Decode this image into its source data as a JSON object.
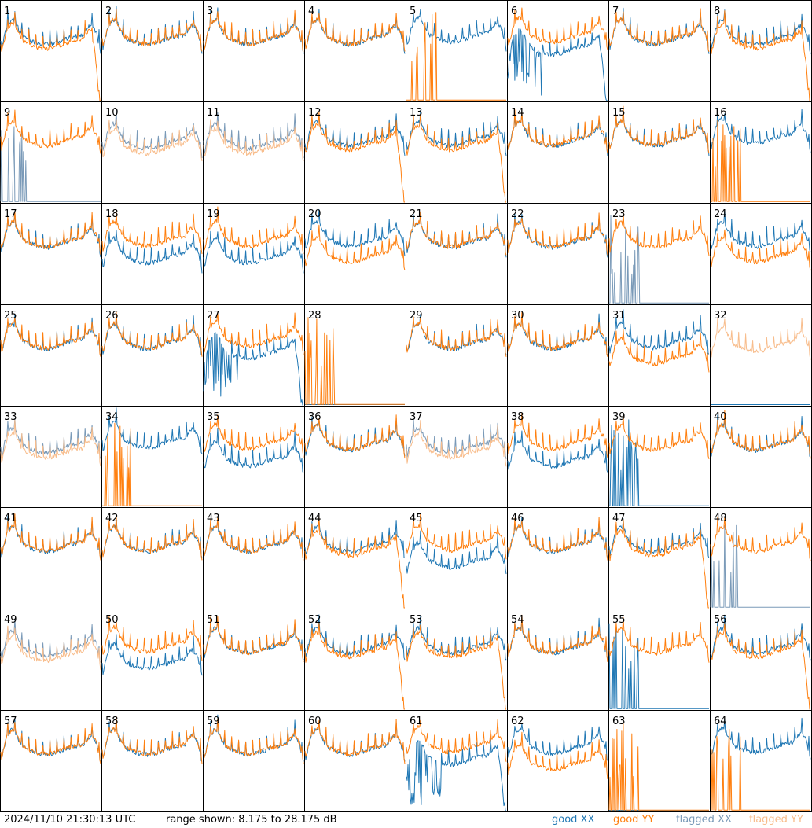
{
  "footer": {
    "timestamp": "2024/11/10 21:30:13 UTC",
    "range_text": "range shown: 8.175 to 28.175 dB"
  },
  "legend": {
    "good_xx": "good XX",
    "good_yy": "good YY",
    "flagged_xx": "flagged XX",
    "flagged_yy": "flagged YY"
  },
  "colors": {
    "good_xx": "#1f77b4",
    "good_yy": "#ff7f0e",
    "flagged_xx": "#7a9ab8",
    "flagged_yy": "#f8bd8c",
    "frame": "#000000"
  },
  "chart_data": {
    "type": "line",
    "grid": "8x8",
    "ylim": [
      8.175,
      28.175
    ],
    "y_unit": "dB",
    "panel_labels": [
      "1",
      "2",
      "3",
      "4",
      "5",
      "6",
      "7",
      "8",
      "9",
      "10",
      "11",
      "12",
      "13",
      "14",
      "15",
      "16",
      "17",
      "18",
      "19",
      "20",
      "21",
      "22",
      "23",
      "24",
      "25",
      "26",
      "27",
      "28",
      "29",
      "30",
      "31",
      "32",
      "33",
      "34",
      "35",
      "36",
      "37",
      "38",
      "39",
      "40",
      "41",
      "42",
      "43",
      "44",
      "45",
      "46",
      "47",
      "48",
      "49",
      "50",
      "51",
      "52",
      "53",
      "54",
      "55",
      "56",
      "57",
      "58",
      "59",
      "60",
      "61",
      "62",
      "63",
      "64"
    ],
    "panel_types": [
      "AA",
      "N",
      "N",
      "N",
      "XY",
      "AB",
      "N",
      "AA",
      "FXN",
      "FN",
      "FN",
      "AA",
      "AA",
      "N",
      "N",
      "XY",
      "N",
      "DX",
      "DX",
      "DY",
      "N",
      "N",
      "FXN",
      "DY",
      "N",
      "N",
      "AB",
      "BY",
      "N",
      "N",
      "DY",
      "FY",
      "FN",
      "XY",
      "DX",
      "N",
      "FN",
      "DX",
      "BX",
      "N",
      "N",
      "N",
      "N",
      "AA",
      "DX",
      "N",
      "AA",
      "FXN",
      "FN",
      "DX",
      "N",
      "AA",
      "AA",
      "N",
      "BX",
      "AA",
      "N",
      "N",
      "N",
      "N",
      "AB",
      "DY",
      "BY",
      "XY"
    ],
    "panel_type_key": {
      "N": "XX and YY overlap",
      "DX": "XX lower than YY",
      "DY": "YY lower than XX",
      "AA": "YY rolls off at high end",
      "AB": "XX rolls off at high end",
      "XY": "only XX good, YY spike",
      "BX": "XX spikes only",
      "BY": "YY spikes only",
      "FN": "flagged pair",
      "FXN": "XX flagged",
      "FY": "YY flagged"
    },
    "series": [
      {
        "name": "good XX"
      },
      {
        "name": "good YY"
      },
      {
        "name": "flagged XX"
      },
      {
        "name": "flagged YY"
      }
    ]
  }
}
